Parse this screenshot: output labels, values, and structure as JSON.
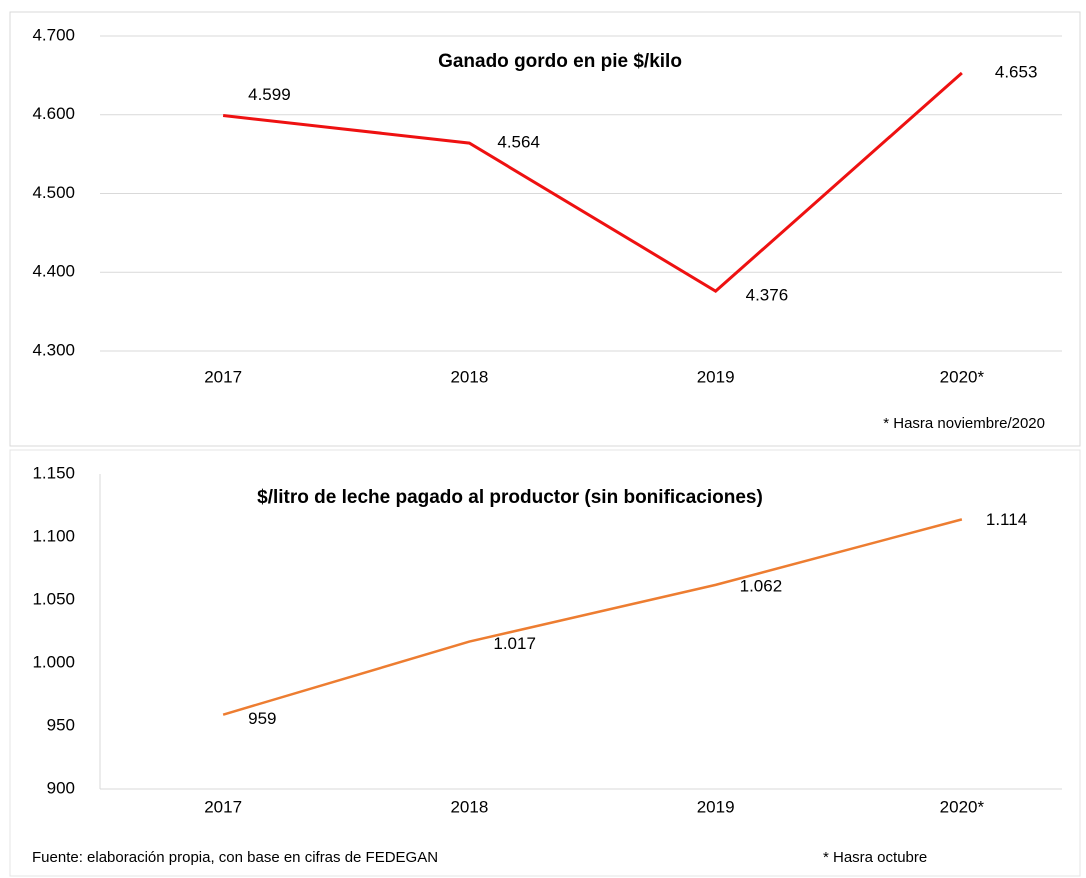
{
  "chart_data": [
    {
      "type": "line",
      "title": "Ganado gordo en pie $/kilo",
      "categories": [
        "2017",
        "2018",
        "2019",
        "2020*"
      ],
      "series": [
        {
          "name": "Ganado gordo en pie $/kilo",
          "color": "#ee1111",
          "values": [
            4599,
            4564,
            4376,
            4653
          ],
          "value_labels": [
            "4.599",
            "4.564",
            "4.376",
            "4.653"
          ]
        }
      ],
      "ylim": [
        4300,
        4700
      ],
      "yticks": [
        {
          "value": 4300,
          "label": "4.300"
        },
        {
          "value": 4400,
          "label": "4.400"
        },
        {
          "value": 4500,
          "label": "4.500"
        },
        {
          "value": 4600,
          "label": "4.600"
        },
        {
          "value": 4700,
          "label": "4.700"
        }
      ],
      "grid": true,
      "note": "* Hasra noviembre/2020"
    },
    {
      "type": "line",
      "title": "$/litro de leche pagado al productor (sin bonificaciones)",
      "categories": [
        "2017",
        "2018",
        "2019",
        "2020*"
      ],
      "series": [
        {
          "name": "$/litro de leche pagado al productor (sin bonificaciones)",
          "color": "#ed7d31",
          "values": [
            959,
            1017,
            1062,
            1114
          ],
          "value_labels": [
            "959",
            "1.017",
            "1.062",
            "1.114"
          ]
        }
      ],
      "ylim": [
        900,
        1150
      ],
      "yticks": [
        900,
        950,
        {
          "value": 1000,
          "label": "1.000"
        },
        {
          "value": 1050,
          "label": "1.050"
        },
        {
          "value": 1100,
          "label": "1.100"
        },
        {
          "value": 1150,
          "label": "1.150"
        }
      ],
      "grid": false,
      "note": "* Hasra octubre"
    }
  ],
  "source": "Fuente: elaboración propia, con base en cifras  de FEDEGAN"
}
